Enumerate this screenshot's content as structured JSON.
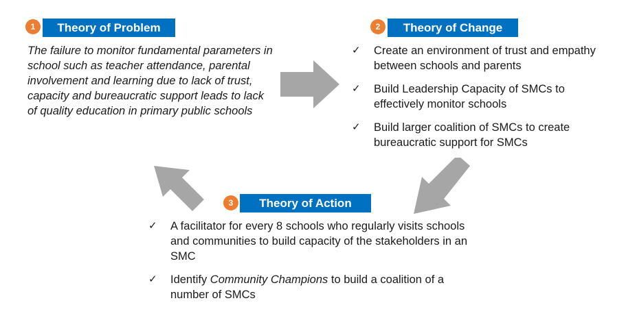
{
  "problem": {
    "number": "1",
    "title": "Theory of Problem",
    "text": "The failure to monitor fundamental parameters in school such as teacher attendance, parental involvement and learning due to lack of trust, capacity and bureaucratic support leads to lack of quality education in primary public schools"
  },
  "change": {
    "number": "2",
    "title": "Theory of Change",
    "items": [
      "Create an environment of trust and empathy between schools and parents",
      "Build Leadership Capacity of SMCs to effectively monitor schools",
      "Build larger coalition of SMCs to create bureaucratic support for SMCs"
    ]
  },
  "action": {
    "number": "3",
    "title": "Theory of Action",
    "item1": "A facilitator for every 8 schools who regularly visits schools and communities to build capacity of the stakeholders in an SMC",
    "item2_pre": "Identify ",
    "item2_em": "Community Champions",
    "item2_post": " to build a coalition of a number of SMCs"
  },
  "colors": {
    "accent": "#0070c0",
    "badge": "#ed7d31",
    "arrow": "#a6a6a6"
  },
  "check_glyph": "✓"
}
